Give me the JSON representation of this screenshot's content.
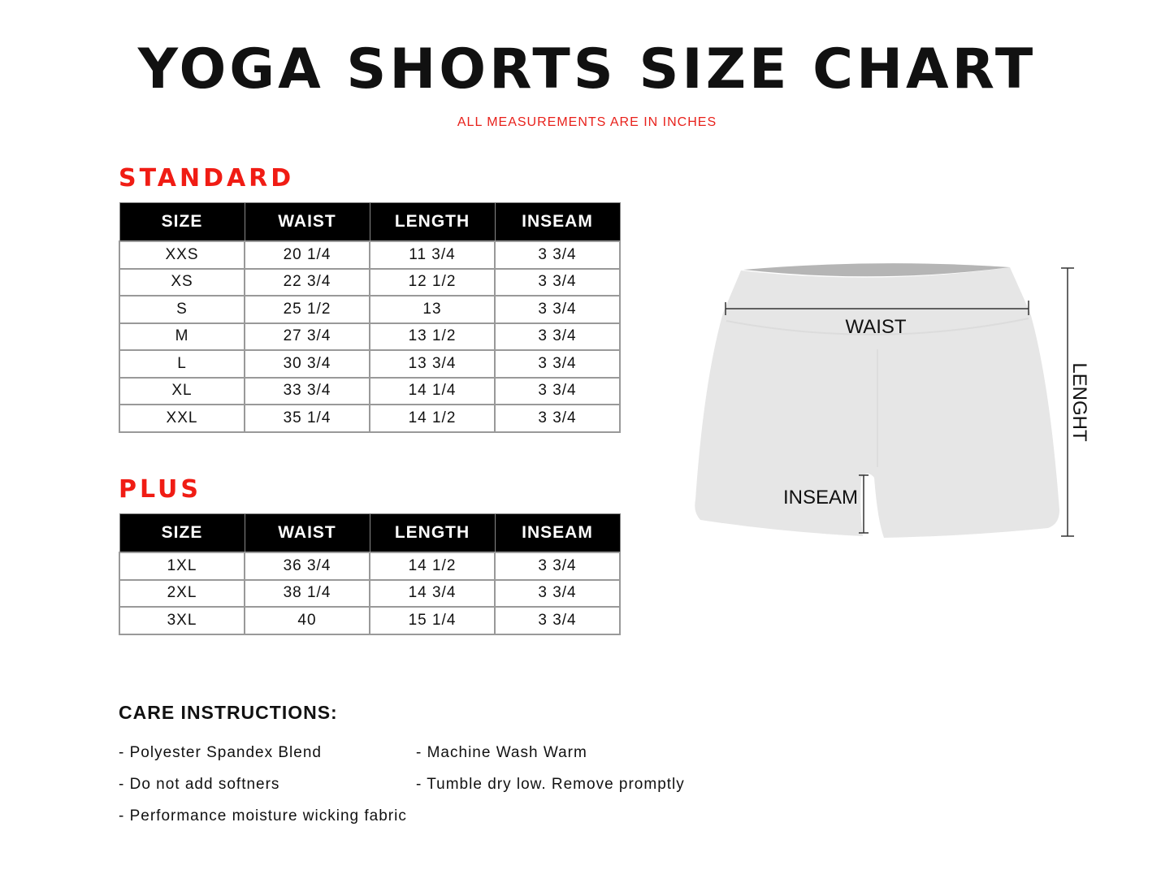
{
  "header": {
    "title": "YOGA SHORTS SIZE CHART",
    "subtitle": "ALL MEASUREMENTS ARE IN INCHES"
  },
  "accent_color": "#f01c14",
  "standard": {
    "heading": "STANDARD",
    "columns": [
      "SIZE",
      "WAIST",
      "LENGTH",
      "INSEAM"
    ],
    "rows": [
      [
        "XXS",
        "20 1/4",
        "11 3/4",
        "3 3/4"
      ],
      [
        "XS",
        "22 3/4",
        "12 1/2",
        "3 3/4"
      ],
      [
        "S",
        "25 1/2",
        "13",
        "3 3/4"
      ],
      [
        "M",
        "27 3/4",
        "13 1/2",
        "3 3/4"
      ],
      [
        "L",
        "30 3/4",
        "13 3/4",
        "3 3/4"
      ],
      [
        "XL",
        "33 3/4",
        "14 1/4",
        "3 3/4"
      ],
      [
        "XXL",
        "35 1/4",
        "14 1/2",
        "3 3/4"
      ]
    ]
  },
  "plus": {
    "heading": "PLUS",
    "columns": [
      "SIZE",
      "WAIST",
      "LENGTH",
      "INSEAM"
    ],
    "rows": [
      [
        "1XL",
        "36 3/4",
        "14 1/2",
        "3 3/4"
      ],
      [
        "2XL",
        "38 1/4",
        "14 3/4",
        "3 3/4"
      ],
      [
        "3XL",
        "40",
        "15 1/4",
        "3 3/4"
      ]
    ]
  },
  "diagram": {
    "waist": "WAIST",
    "inseam": "INSEAM",
    "length": "LENGHT"
  },
  "care": {
    "title": "CARE INSTRUCTIONS:",
    "items": [
      "- Polyester Spandex Blend",
      "- Machine Wash Warm",
      "- Do not add softners",
      "- Tumble dry low. Remove promptly",
      "- Performance moisture wicking fabric"
    ]
  }
}
